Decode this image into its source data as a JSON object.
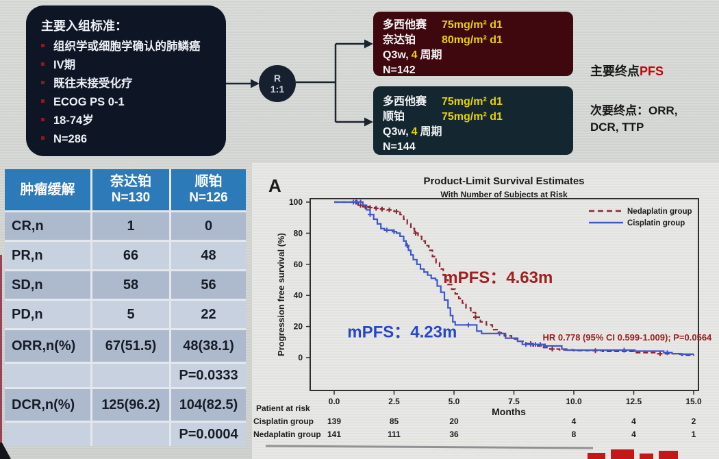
{
  "flow": {
    "criteria": {
      "title": "主要入组标准：",
      "items": [
        "组织学或细胞学确认的肺鳞癌",
        "IV期",
        "既往未接受化疗",
        "ECOG PS 0-1",
        "18-74岁",
        "N=286"
      ]
    },
    "randomization": {
      "letter": "R",
      "ratio": "1:1"
    },
    "arm1": {
      "lines": [
        {
          "drug": "多西他赛",
          "dose": "75mg/m² d1"
        },
        {
          "drug": "奈达铂",
          "dose": "80mg/m² d1"
        }
      ],
      "schedule_prefix": "Q3w,",
      "schedule_cycles": "4",
      "schedule_suffix": "周期",
      "n": "N=142"
    },
    "arm2": {
      "lines": [
        {
          "drug": "多西他赛",
          "dose": "75mg/m² d1"
        },
        {
          "drug": "顺铂",
          "dose": "75mg/m² d1"
        }
      ],
      "schedule_prefix": "Q3w,",
      "schedule_cycles": "4",
      "schedule_suffix": "周期",
      "n": "N=144"
    },
    "endpoints": {
      "primary_label": "主要终点",
      "primary_value": "PFS",
      "secondary_line1": "次要终点：ORR,",
      "secondary_line2": "DCR, TTP"
    }
  },
  "table": {
    "columns": [
      {
        "title": "肿瘤缓解",
        "sub": ""
      },
      {
        "title": "奈达铂",
        "sub": "N=130"
      },
      {
        "title": "顺铂",
        "sub": "N=126"
      }
    ],
    "rows": [
      {
        "label": "CR,n",
        "neda": "1",
        "cis": "0"
      },
      {
        "label": "PR,n",
        "neda": "66",
        "cis": "48"
      },
      {
        "label": "SD,n",
        "neda": "58",
        "cis": "56"
      },
      {
        "label": "PD,n",
        "neda": "5",
        "cis": "22"
      },
      {
        "label": "ORR,n(%)",
        "neda": "67(51.5)",
        "cis": "48(38.1)"
      },
      {
        "label": "",
        "neda": "",
        "cis": "P=0.0333"
      },
      {
        "label": "DCR,n(%)",
        "neda": "125(96.2)",
        "cis": "104(82.5)"
      },
      {
        "label": "",
        "neda": "",
        "cis": "P=0.0004"
      }
    ]
  },
  "chart_data": {
    "type": "line",
    "subtype": "kaplan-meier-step",
    "panel_label": "A",
    "title": "Product-Limit Survival Estimates",
    "subtitle": "With Number of Subjects at Risk",
    "xlabel": "Months",
    "ylabel": "Progression free survival (%)",
    "xlim": [
      0,
      15
    ],
    "ylim": [
      0,
      100
    ],
    "xticks": [
      0,
      2.5,
      5,
      7.5,
      10,
      12.5,
      15
    ],
    "xtick_labels": [
      "0.0",
      "2.5",
      "5.0",
      "7.5",
      "10.0",
      "12.5",
      "15.0"
    ],
    "yticks": [
      0,
      20,
      40,
      60,
      80,
      100
    ],
    "grid": false,
    "legend_position": "top-right",
    "series": [
      {
        "name": "Nedaplatin group",
        "color": "#8f2433",
        "style": "dashed",
        "median_pfs_months": 4.63,
        "points": [
          [
            0,
            100
          ],
          [
            0.85,
            100
          ],
          [
            1.0,
            98
          ],
          [
            1.2,
            97
          ],
          [
            1.45,
            96.5
          ],
          [
            1.7,
            96
          ],
          [
            1.95,
            95.5
          ],
          [
            2.2,
            95
          ],
          [
            2.5,
            94
          ],
          [
            2.75,
            92
          ],
          [
            2.9,
            89
          ],
          [
            3.05,
            86
          ],
          [
            3.2,
            83
          ],
          [
            3.35,
            80
          ],
          [
            3.5,
            78
          ],
          [
            3.65,
            75
          ],
          [
            3.8,
            72
          ],
          [
            3.95,
            69
          ],
          [
            4.1,
            65
          ],
          [
            4.25,
            61
          ],
          [
            4.4,
            57
          ],
          [
            4.55,
            53
          ],
          [
            4.63,
            50
          ],
          [
            4.75,
            47
          ],
          [
            4.9,
            44
          ],
          [
            5.05,
            41
          ],
          [
            5.2,
            38
          ],
          [
            5.35,
            35
          ],
          [
            5.5,
            32
          ],
          [
            5.7,
            29
          ],
          [
            5.9,
            26
          ],
          [
            6.1,
            23
          ],
          [
            6.35,
            21
          ],
          [
            6.6,
            18
          ],
          [
            6.85,
            16
          ],
          [
            7.1,
            14
          ],
          [
            7.4,
            12
          ],
          [
            7.7,
            10.5
          ],
          [
            8.0,
            9
          ],
          [
            8.3,
            7.5
          ],
          [
            8.7,
            6.5
          ],
          [
            9.0,
            5.5
          ],
          [
            9.4,
            5
          ],
          [
            10.0,
            4.5
          ],
          [
            11.2,
            4
          ],
          [
            12.2,
            4
          ],
          [
            12.5,
            3.2
          ],
          [
            13.2,
            3.2
          ],
          [
            13.5,
            2.5
          ],
          [
            14.2,
            2.5
          ],
          [
            14.5,
            1.5
          ],
          [
            15,
            1.2
          ]
        ],
        "censors": [
          0.9,
          1.1,
          1.3,
          1.5,
          1.75,
          2.0,
          2.3,
          2.6,
          3.4,
          5.9,
          8.2,
          9.1,
          10.9,
          13.6
        ]
      },
      {
        "name": "Cisplatin group",
        "color": "#3f56cc",
        "style": "solid",
        "median_pfs_months": 4.23,
        "points": [
          [
            0,
            100
          ],
          [
            1.05,
            100
          ],
          [
            1.2,
            98
          ],
          [
            1.35,
            95
          ],
          [
            1.5,
            92
          ],
          [
            1.65,
            89
          ],
          [
            1.8,
            86
          ],
          [
            1.95,
            83
          ],
          [
            2.1,
            82
          ],
          [
            2.45,
            81
          ],
          [
            2.6,
            80
          ],
          [
            2.75,
            78
          ],
          [
            2.9,
            75
          ],
          [
            3.0,
            72
          ],
          [
            3.1,
            69
          ],
          [
            3.2,
            66
          ],
          [
            3.3,
            63
          ],
          [
            3.45,
            60
          ],
          [
            3.6,
            57
          ],
          [
            3.75,
            55
          ],
          [
            3.9,
            53
          ],
          [
            4.05,
            51
          ],
          [
            4.23,
            50
          ],
          [
            4.3,
            46
          ],
          [
            4.45,
            42
          ],
          [
            4.6,
            37
          ],
          [
            4.75,
            32
          ],
          [
            4.85,
            27
          ],
          [
            4.95,
            23
          ],
          [
            5.05,
            21
          ],
          [
            5.75,
            21
          ],
          [
            5.95,
            17
          ],
          [
            6.15,
            15.5
          ],
          [
            6.95,
            15.5
          ],
          [
            7.15,
            12.5
          ],
          [
            7.5,
            12.5
          ],
          [
            7.65,
            10.5
          ],
          [
            7.85,
            8.5
          ],
          [
            8.55,
            8.5
          ],
          [
            8.75,
            7.5
          ],
          [
            9.3,
            7.5
          ],
          [
            9.5,
            5.5
          ],
          [
            9.7,
            4.8
          ],
          [
            12.3,
            4.8
          ],
          [
            12.55,
            4.2
          ],
          [
            13.5,
            4.2
          ],
          [
            13.75,
            3.2
          ],
          [
            14.1,
            2.6
          ],
          [
            14.4,
            2.2
          ],
          [
            15,
            2.2
          ]
        ],
        "censors": [
          0.8,
          0.95,
          1.1,
          1.5,
          2.2,
          2.5,
          3.05,
          5.6,
          6.9,
          8.0,
          8.2,
          8.4,
          8.6,
          8.8,
          12.1,
          13.9
        ]
      }
    ],
    "annotations": [
      {
        "text": "mPFS：4.63m",
        "color": "#a02020",
        "x": 4.55,
        "y": 48,
        "size": 24
      },
      {
        "text": "mPFS：4.23m",
        "color": "#2746c8",
        "x": 0.55,
        "y": 13,
        "size": 24
      },
      {
        "text": "HR 0.778 (95% CI 0.599-1.009); P=0.0564",
        "color": "#9c1c1c",
        "x": 8.7,
        "y": 11,
        "size": 13
      }
    ],
    "risk_table": {
      "label": "Patient at risk",
      "columns_months": [
        0,
        2.5,
        5,
        10,
        12.5,
        15
      ],
      "rows": [
        {
          "name": "Cisplatin group",
          "values": [
            "139",
            "85",
            "20",
            "4",
            "4",
            "2"
          ]
        },
        {
          "name": "Nedaplatin group",
          "values": [
            "141",
            "111",
            "36",
            "8",
            "4",
            "1"
          ]
        }
      ]
    }
  }
}
